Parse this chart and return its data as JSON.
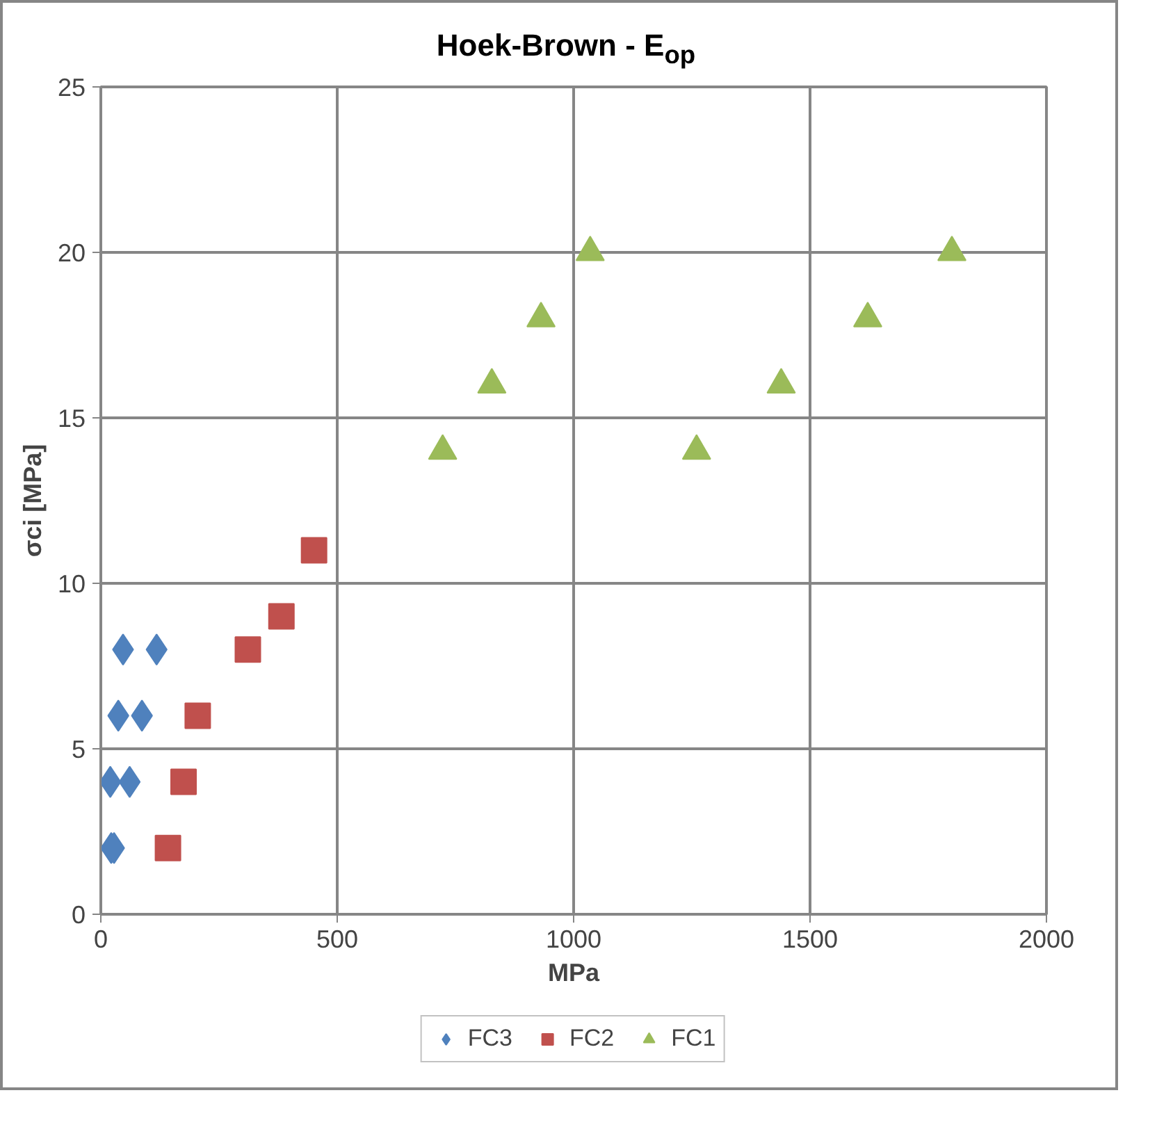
{
  "chart_data": {
    "type": "scatter",
    "title": "Hoek-Brown - E$_{op}$",
    "xlabel": "MPa",
    "ylabel": "σci [MPa]",
    "xlim": [
      0,
      2000
    ],
    "xticks": [
      0,
      500,
      1000,
      1500,
      2000
    ],
    "ylim": [
      0,
      25
    ],
    "yticks": [
      0,
      5,
      10,
      15,
      20,
      25
    ],
    "grid": true,
    "legend": "bottom",
    "series": [
      {
        "name": "FC3",
        "color": "#4f81bd",
        "marker": "diamond",
        "x": [
          47,
          118,
          37,
          87,
          20,
          61,
          22,
          28
        ],
        "values": [
          8,
          8,
          6,
          6,
          4,
          4,
          2,
          2
        ]
      },
      {
        "name": "FC2",
        "color": "#c0504d",
        "marker": "square",
        "x": [
          451,
          382,
          311,
          205,
          175,
          142
        ],
        "values": [
          11,
          9,
          8,
          6,
          4,
          2
        ]
      },
      {
        "name": "FC1",
        "color": "#9bbb59",
        "marker": "triangle",
        "x": [
          723,
          827,
          931,
          1035,
          1260,
          1439,
          1622,
          1800
        ],
        "values": [
          14,
          16,
          18,
          20,
          14,
          16,
          18,
          20
        ]
      }
    ]
  }
}
